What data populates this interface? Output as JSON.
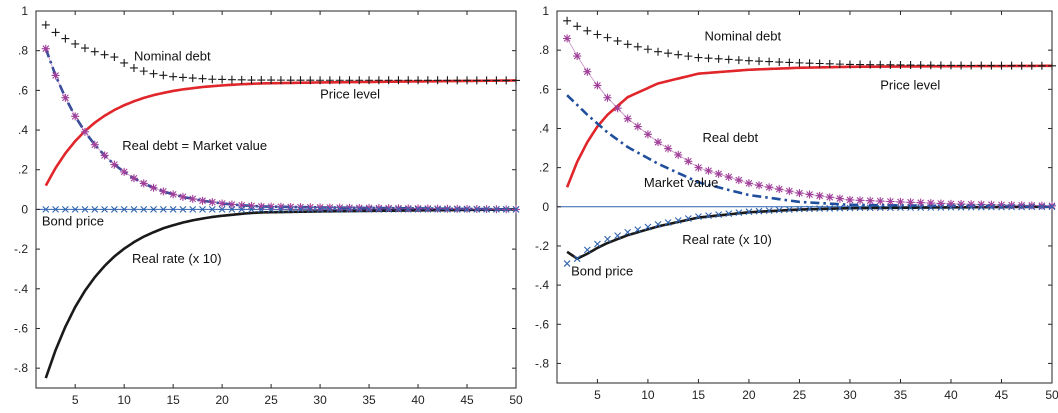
{
  "colors": {
    "nominal_debt": "#1a1a1a",
    "price_level": "#e0262b",
    "real_debt": "#a0409a",
    "market_value": "#1f4e9c",
    "bond_price": "#2e62ad",
    "real_rate": "#1a1a1a",
    "zero_line": "#2e62ad",
    "axis": "#262626"
  },
  "chart_data": [
    {
      "type": "line",
      "panel": "left",
      "xlim": [
        1,
        50
      ],
      "ylim": [
        -0.9,
        1
      ],
      "xticks": [
        5,
        10,
        15,
        20,
        25,
        30,
        35,
        40,
        45,
        50
      ],
      "yticks": [
        -0.8,
        -0.6,
        -0.4,
        -0.2,
        0,
        0.2,
        0.4,
        0.6,
        0.8,
        1
      ],
      "x_start": 2,
      "x_end": 50,
      "series": [
        {
          "key": "nominal_debt",
          "marker": "+",
          "values": [
            0.93,
            0.892,
            0.861,
            0.834,
            0.813,
            0.795,
            0.78,
            0.768,
            0.738,
            0.713,
            0.697,
            0.684,
            0.676,
            0.669,
            0.665,
            0.662,
            0.659,
            0.656,
            0.655,
            0.654,
            0.653,
            0.652,
            0.652,
            0.651,
            0.651,
            0.65
          ]
        },
        {
          "key": "price_level",
          "line": "solid",
          "values": [
            0.12,
            0.209,
            0.283,
            0.344,
            0.395,
            0.437,
            0.472,
            0.501,
            0.525,
            0.545,
            0.562,
            0.576,
            0.587,
            0.597,
            0.605,
            0.611,
            0.617,
            0.621,
            0.625,
            0.628,
            0.631,
            0.633,
            0.635,
            0.64,
            0.645,
            0.65
          ]
        },
        {
          "key": "real_debt",
          "marker": "*",
          "values": [
            0.81,
            0.675,
            0.563,
            0.469,
            0.391,
            0.326,
            0.272,
            0.226,
            0.189,
            0.157,
            0.131,
            0.109,
            0.091,
            0.076,
            0.063,
            0.053,
            0.044,
            0.037,
            0.03,
            0.025,
            0.021,
            0.018,
            0.015,
            0.01,
            0.005,
            0
          ]
        },
        {
          "key": "market_value",
          "line": "dashdot",
          "values": [
            0.81,
            0.675,
            0.563,
            0.469,
            0.391,
            0.326,
            0.272,
            0.226,
            0.189,
            0.157,
            0.131,
            0.109,
            0.091,
            0.076,
            0.063,
            0.053,
            0.044,
            0.037,
            0.03,
            0.025,
            0.021,
            0.018,
            0.015,
            0.01,
            0.005,
            0
          ]
        },
        {
          "key": "bond_price",
          "marker": "x",
          "values": [
            0,
            0,
            0,
            0,
            0,
            0,
            0,
            0,
            0,
            0,
            0,
            0,
            0,
            0,
            0,
            0,
            0,
            0,
            0,
            0,
            0,
            0,
            0,
            0,
            0,
            0
          ]
        },
        {
          "key": "real_rate",
          "line": "solid",
          "values": [
            -0.85,
            -0.709,
            -0.591,
            -0.492,
            -0.41,
            -0.342,
            -0.285,
            -0.237,
            -0.198,
            -0.165,
            -0.137,
            -0.115,
            -0.095,
            -0.08,
            -0.066,
            -0.055,
            -0.046,
            -0.038,
            -0.032,
            -0.027,
            -0.022,
            -0.018,
            -0.015,
            -0.01,
            -0.005,
            0
          ]
        }
      ],
      "x_full": [
        2,
        3,
        4,
        5,
        6,
        7,
        8,
        9,
        10,
        11,
        12,
        13,
        14,
        15,
        16,
        17,
        18,
        19,
        20,
        21,
        22,
        23,
        24,
        30,
        40,
        50
      ],
      "annotations": [
        {
          "key": "nominal_debt",
          "text": "Nominal debt",
          "x": 11,
          "y": 0.75
        },
        {
          "key": "price_level",
          "text": "Price level",
          "x": 30,
          "y": 0.56
        },
        {
          "key": "real_debt",
          "text": "Real debt  = Market value",
          "x": 9.8,
          "y": 0.3
        },
        {
          "key": "bond_price",
          "text": "Bond price",
          "x": 1.6,
          "y": -0.08
        },
        {
          "key": "real_rate",
          "text": "Real rate (x 10)",
          "x": 10.8,
          "y": -0.27
        }
      ]
    },
    {
      "type": "line",
      "panel": "right",
      "xlim": [
        1,
        50
      ],
      "ylim": [
        -0.9,
        1
      ],
      "xticks": [
        5,
        10,
        15,
        20,
        25,
        30,
        35,
        40,
        45,
        50
      ],
      "yticks": [
        -0.8,
        -0.6,
        -0.4,
        -0.2,
        0,
        0.2,
        0.4,
        0.6,
        0.8,
        1
      ],
      "x_start": 2,
      "x_end": 50,
      "series": [
        {
          "key": "nominal_debt",
          "marker": "+",
          "values": [
            0.95,
            0.922,
            0.899,
            0.88,
            0.864,
            0.83,
            0.792,
            0.762,
            0.746,
            0.735,
            0.727,
            0.722,
            0.72
          ]
        },
        {
          "key": "price_level",
          "line": "solid",
          "values": [
            0.1,
            0.23,
            0.33,
            0.41,
            0.47,
            0.56,
            0.63,
            0.68,
            0.7,
            0.71,
            0.715,
            0.718,
            0.72
          ]
        },
        {
          "key": "real_debt",
          "marker": "*",
          "values": [
            0.86,
            0.77,
            0.69,
            0.62,
            0.557,
            0.45,
            0.33,
            0.2,
            0.12,
            0.07,
            0.035,
            0.015,
            0.005
          ]
        },
        {
          "key": "market_value",
          "line": "dashdot",
          "values": [
            0.57,
            0.52,
            0.47,
            0.425,
            0.38,
            0.305,
            0.22,
            0.125,
            0.06,
            0.025,
            0.01,
            0.004,
            0
          ]
        },
        {
          "key": "bond_price",
          "marker": "x",
          "values": [
            -0.29,
            -0.265,
            -0.22,
            -0.19,
            -0.165,
            -0.13,
            -0.09,
            -0.05,
            -0.025,
            -0.012,
            -0.006,
            -0.003,
            0
          ]
        },
        {
          "key": "real_rate",
          "line": "solid",
          "values": [
            -0.23,
            -0.265,
            -0.24,
            -0.21,
            -0.185,
            -0.145,
            -0.1,
            -0.055,
            -0.028,
            -0.014,
            -0.007,
            -0.003,
            0
          ]
        }
      ],
      "x_full": [
        2,
        3,
        4,
        5,
        6,
        8,
        11,
        15,
        20,
        25,
        30,
        40,
        50
      ],
      "annotations": [
        {
          "key": "nominal_debt",
          "text": "Nominal debt",
          "x": 15.6,
          "y": 0.85
        },
        {
          "key": "price_level",
          "text": "Price level",
          "x": 33,
          "y": 0.6
        },
        {
          "key": "real_debt",
          "text": "Real debt",
          "x": 15.4,
          "y": 0.33
        },
        {
          "key": "market_value",
          "text": "Market value",
          "x": 9.6,
          "y": 0.1
        },
        {
          "key": "real_rate",
          "text": "Real rate (x 10)",
          "x": 13.4,
          "y": -0.19
        },
        {
          "key": "bond_price",
          "text": "Bond price",
          "x": 2.4,
          "y": -0.35
        }
      ]
    }
  ]
}
